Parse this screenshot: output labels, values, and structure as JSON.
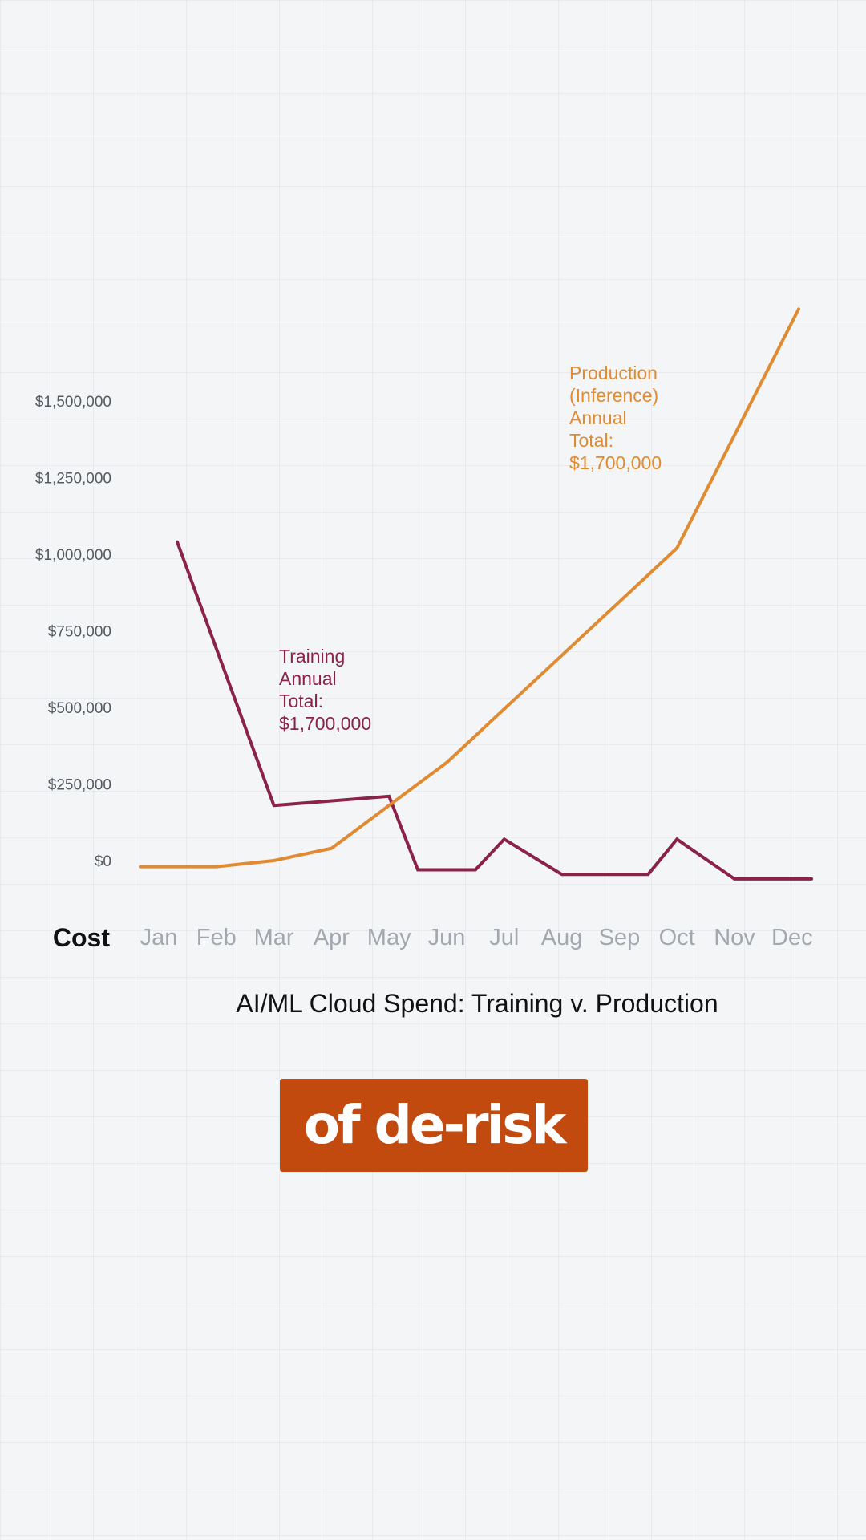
{
  "chart_data": {
    "type": "line",
    "title": "AI/ML Cloud Spend: Training v. Production",
    "xlabel": "",
    "ylabel": "Cost",
    "categories": [
      "Jan",
      "Feb",
      "Mar",
      "Apr",
      "May",
      "Jun",
      "Jul",
      "Aug",
      "Sep",
      "Oct",
      "Nov",
      "Dec"
    ],
    "y_ticks": [
      {
        "value": 0,
        "label": "$0"
      },
      {
        "value": 250000,
        "label": "$250,000"
      },
      {
        "value": 500000,
        "label": "$500,000"
      },
      {
        "value": 750000,
        "label": "$750,000"
      },
      {
        "value": 1000000,
        "label": "$1,000,000"
      },
      {
        "value": 1250000,
        "label": "$1,250,000"
      },
      {
        "value": 1500000,
        "label": "$1,500,000"
      }
    ],
    "ylim": [
      0,
      1800000
    ],
    "grid": true,
    "series": [
      {
        "key": "training",
        "color": "#8b2346",
        "annotation": [
          "Training",
          "Annual",
          "Total:",
          "$1,700,000"
        ],
        "points": [
          {
            "x": "Jan",
            "y": 1040000
          },
          {
            "x": "Mar",
            "y": 180000
          },
          {
            "x": "May",
            "y": 210000
          },
          {
            "x": "May–Jun",
            "y": -30000
          },
          {
            "x": "Jun–Jul",
            "y": -30000
          },
          {
            "x": "Jul",
            "y": 70000
          },
          {
            "x": "Aug",
            "y": -45000
          },
          {
            "x": "Sep–Oct",
            "y": -45000
          },
          {
            "x": "Oct",
            "y": 70000
          },
          {
            "x": "Nov",
            "y": -60000
          },
          {
            "x": "Dec",
            "y": -60000
          }
        ]
      },
      {
        "key": "production",
        "color": "#e08a32",
        "annotation": [
          "Production",
          "(Inference)",
          "Annual",
          "Total:",
          "$1,700,000"
        ],
        "points": [
          {
            "x": "Jan",
            "y": -20000
          },
          {
            "x": "Feb",
            "y": -20000
          },
          {
            "x": "Mar",
            "y": 0
          },
          {
            "x": "Apr",
            "y": 40000
          },
          {
            "x": "May",
            "y": 180000
          },
          {
            "x": "Jun",
            "y": 320000
          },
          {
            "x": "Oct",
            "y": 1020000
          },
          {
            "x": "Dec",
            "y": 1800000
          }
        ]
      }
    ]
  },
  "caption": "of de-risk"
}
